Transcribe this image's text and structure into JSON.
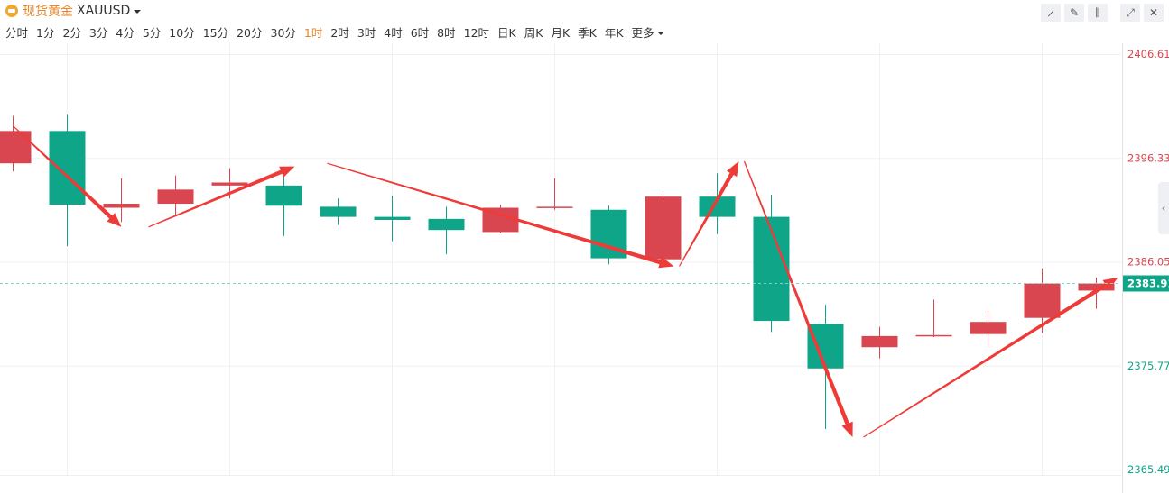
{
  "header": {
    "symbol_name": "现货黄金",
    "symbol_code": "XAUUSD",
    "tools": [
      {
        "icon": "line-chart-icon",
        "glyph": "⩘"
      },
      {
        "icon": "pencil-icon",
        "glyph": "✎"
      },
      {
        "icon": "candlestick-icon",
        "glyph": "⫼"
      },
      {
        "icon": "expand-icon",
        "glyph": "⤢"
      },
      {
        "icon": "close-icon",
        "glyph": "✕"
      }
    ]
  },
  "periods": [
    "分时",
    "1分",
    "2分",
    "3分",
    "4分",
    "5分",
    "10分",
    "15分",
    "20分",
    "30分",
    "1时",
    "2时",
    "3时",
    "4时",
    "6时",
    "8时",
    "12时",
    "日K",
    "周K",
    "月K",
    "季K",
    "年K",
    "更多"
  ],
  "active_period": "1时",
  "colors": {
    "up": "#d9464f",
    "down": "#0fa588",
    "arrow": "#ef3b38",
    "grid": "#f1f1f1",
    "accent": "#e8842a"
  },
  "chart_data": {
    "type": "candlestick",
    "y_ticks": [
      "2406.61",
      "2396.33",
      "2386.05",
      "2375.77",
      "2365.49"
    ],
    "y_tick_values": [
      2406.61,
      2396.33,
      2386.05,
      2375.77,
      2365.49
    ],
    "ylim": [
      2365.49,
      2406.61
    ],
    "last_price": "2383.91",
    "last_price_value": 2383.91,
    "candles": [
      {
        "open": 2395.8,
        "close": 2399.0,
        "high": 2400.5,
        "low": 2395.0
      },
      {
        "open": 2399.0,
        "close": 2391.7,
        "high": 2400.6,
        "low": 2387.6
      },
      {
        "open": 2391.4,
        "close": 2391.8,
        "high": 2394.3,
        "low": 2390.0
      },
      {
        "open": 2391.8,
        "close": 2393.2,
        "high": 2394.6,
        "low": 2390.6
      },
      {
        "open": 2393.6,
        "close": 2393.9,
        "high": 2395.3,
        "low": 2392.3
      },
      {
        "open": 2393.6,
        "close": 2391.6,
        "high": 2395.1,
        "low": 2388.6
      },
      {
        "open": 2391.5,
        "close": 2390.5,
        "high": 2392.3,
        "low": 2389.7
      },
      {
        "open": 2390.5,
        "close": 2390.2,
        "high": 2392.6,
        "low": 2388.1
      },
      {
        "open": 2390.3,
        "close": 2389.2,
        "high": 2391.5,
        "low": 2386.8
      },
      {
        "open": 2389.0,
        "close": 2391.4,
        "high": 2391.7,
        "low": 2388.9
      },
      {
        "open": 2391.4,
        "close": 2391.5,
        "high": 2394.3,
        "low": 2391.2
      },
      {
        "open": 2391.2,
        "close": 2386.4,
        "high": 2391.6,
        "low": 2385.8
      },
      {
        "open": 2386.3,
        "close": 2392.5,
        "high": 2392.8,
        "low": 2385.8
      },
      {
        "open": 2392.5,
        "close": 2390.5,
        "high": 2394.8,
        "low": 2388.8
      },
      {
        "open": 2390.5,
        "close": 2380.2,
        "high": 2392.7,
        "low": 2379.1
      },
      {
        "open": 2379.9,
        "close": 2375.5,
        "high": 2381.8,
        "low": 2369.5
      },
      {
        "open": 2377.6,
        "close": 2378.7,
        "high": 2379.6,
        "low": 2376.5
      },
      {
        "open": 2378.8,
        "close": 2378.8,
        "high": 2382.3,
        "low": 2378.6
      },
      {
        "open": 2378.9,
        "close": 2380.1,
        "high": 2381.2,
        "low": 2377.7
      },
      {
        "open": 2380.5,
        "close": 2383.9,
        "high": 2385.4,
        "low": 2379.0
      },
      {
        "open": 2383.2,
        "close": 2383.9,
        "high": 2384.5,
        "low": 2381.4
      }
    ],
    "annotation_arrows": [
      {
        "from_candle": 0,
        "from_price": 2399.5,
        "to_candle": 2,
        "to_price": 2389.5
      },
      {
        "from_candle": 2.5,
        "from_price": 2389.5,
        "to_candle": 5.2,
        "to_price": 2395.5
      },
      {
        "from_candle": 5.8,
        "from_price": 2395.8,
        "to_candle": 12.2,
        "to_price": 2385.6
      },
      {
        "from_candle": 12.3,
        "from_price": 2385.6,
        "to_candle": 13.4,
        "to_price": 2396.0
      },
      {
        "from_candle": 13.5,
        "from_price": 2396.0,
        "to_candle": 15.5,
        "to_price": 2368.7
      },
      {
        "from_candle": 15.7,
        "from_price": 2368.7,
        "to_candle": 20.4,
        "to_price": 2384.5
      }
    ],
    "grid": true
  }
}
